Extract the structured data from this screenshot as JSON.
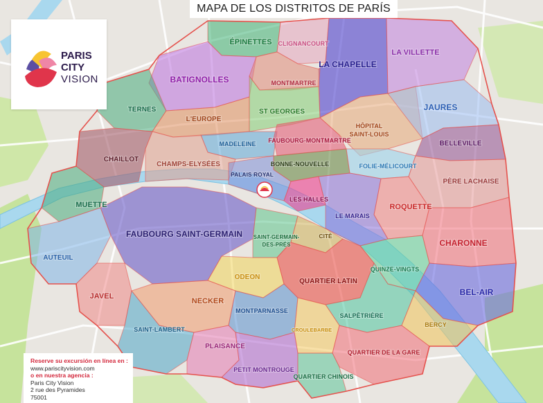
{
  "title": "MAPA DE LOS DISTRITOS DE PARÍS",
  "logo": {
    "line1": "PARIS",
    "line2": "CITY",
    "line3": "VISION"
  },
  "info": {
    "line1": "Reserve su excursión en línea en :",
    "line2": "www.pariscityvision.com",
    "line3": "o en nuestra agencia :",
    "line4": "Paris City Vision",
    "line5": "2 rue des Pyramides",
    "line6": "75001"
  },
  "districts": {
    "epinettes": "ÉPINETTES",
    "clignancourt": "CLIGNANCOURT",
    "la_chapelle": "LA CHAPELLE",
    "la_villette": "LA VILLETTE",
    "batignolles": "BATIGNOLLES",
    "montmartre": "MONTMARTRE",
    "ternes": "TERNES",
    "l_europe": "L'EUROPE",
    "st_georges": "ST GEORGES",
    "hopital_1": "HÔPITAL",
    "hopital_2": "SAINT-LOUIS",
    "jaures": "JAURES",
    "madeleine": "MADELEINE",
    "faubourg_montmartre": "FAUBOURG-MONTMARTRE",
    "belleville": "BELLEVILLE",
    "chaillot": "CHAILLOT",
    "champs_elysees": "CHAMPS-ELYSÉES",
    "bonne_nouvelle": "BONNE-NOUVELLE",
    "folie_mericourt": "FOLIE-MÉLICOURT",
    "palais_royal": "PALAIS ROYAL",
    "pere_lachaise": "PÈRE LACHAISE",
    "les_halles": "LES HALLES",
    "muette": "MUETTE",
    "roquette": "ROQUETTE",
    "le_marais": "LE MARAIS",
    "faubourg_saint_germain": "FAUBOURG SAINT-GERMAIN",
    "saint_germain_1": "SAINT-GERMAIN-",
    "saint_germain_2": "DES-PRÉS",
    "cite": "CITÉ",
    "charonne": "CHARONNE",
    "auteuil": "AUTEUIL",
    "quinze_vingts": "QUINZE-VINGTS",
    "odeon": "ODEON",
    "quartier_latin": "QUARTIER LATIN",
    "javel": "JAVEL",
    "necker": "NECKER",
    "bel_air": "BEL-AIR",
    "montparnasse": "MONTPARNASSE",
    "salpetriere": "SALPÊTRIÈRE",
    "bercy": "BERCY",
    "saint_lambert": "SAINT-LAMBERT",
    "croulebarbe": "CROULEBARBE",
    "plaisance": "PLAISANCE",
    "quartier_de_la_gare": "QUARTIER DE LA GARE",
    "petit_montrouge": "PETIT MONTROUGE",
    "quartier_chinois": "QUARTIER CHINOIS"
  },
  "colors": {
    "water": "#a9d8ee",
    "river_edge": "#7cc2e2",
    "park": "#c6e39c",
    "road": "#ffffff",
    "boundary": "#e5524d",
    "logo_red": "#e0354b",
    "logo_pink": "#ef86a6",
    "logo_yellow": "#f7c431",
    "logo_purple": "#5b4fa3"
  }
}
